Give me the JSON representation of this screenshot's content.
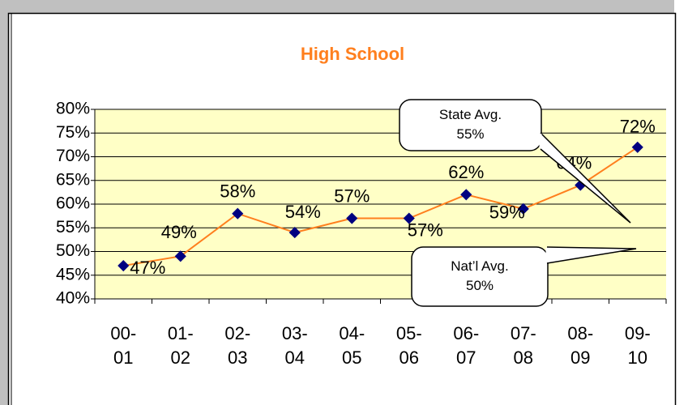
{
  "chart_data": {
    "type": "line",
    "title": "High School",
    "categories": [
      "00-\n01",
      "01-\n02",
      "02-\n03",
      "03-\n04",
      "04-\n05",
      "05-\n06",
      "06-\n07",
      "07-\n08",
      "08-\n09",
      "09-\n10"
    ],
    "series": [
      {
        "color": "#ff7f1e",
        "marker_color": "#000080",
        "values": [
          47,
          49,
          58,
          54,
          57,
          57,
          62,
          59,
          64,
          72
        ],
        "value_labels": [
          "47%",
          "49%",
          "58%",
          "54%",
          "57%",
          "57%",
          "62%",
          "59%",
          "64%",
          "72%"
        ]
      }
    ],
    "ylim": [
      40,
      80
    ],
    "yticks": [
      {
        "value": 40,
        "label": "40%"
      },
      {
        "value": 45,
        "label": "45%"
      },
      {
        "value": 50,
        "label": "50%"
      },
      {
        "value": 55,
        "label": "55%"
      },
      {
        "value": 60,
        "label": "60%"
      },
      {
        "value": 65,
        "label": "65%"
      },
      {
        "value": 70,
        "label": "70%"
      },
      {
        "value": 75,
        "label": "75%"
      },
      {
        "value": 80,
        "label": "80%"
      }
    ],
    "grid": true,
    "annotations": [
      {
        "lines": [
          "State Avg.",
          "55%"
        ]
      },
      {
        "lines": [
          "Nat’l Avg.",
          "50%"
        ]
      }
    ]
  }
}
